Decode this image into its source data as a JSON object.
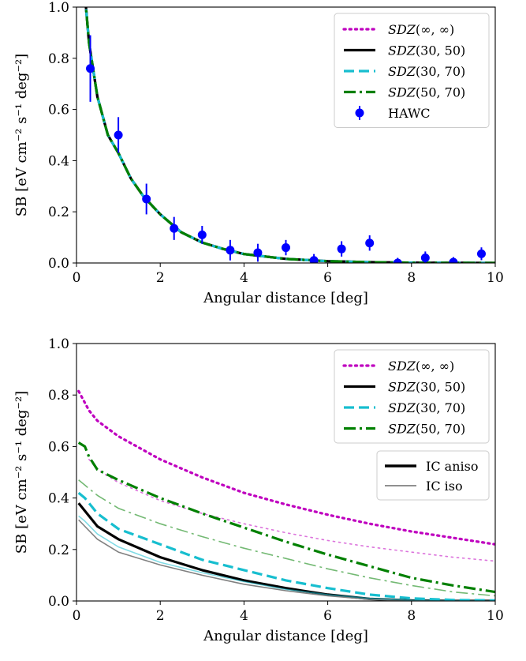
{
  "chart_data": [
    {
      "type": "line",
      "xlabel": "Angular distance [deg]",
      "ylabel": "SB [eV cm⁻² s⁻¹ deg⁻²]",
      "xlim": [
        0,
        10
      ],
      "ylim": [
        0,
        1.0
      ],
      "xticks": [
        "0",
        "2",
        "4",
        "6",
        "8",
        "10"
      ],
      "yticks": [
        "0.0",
        "0.2",
        "0.4",
        "0.6",
        "0.8",
        "1.0"
      ],
      "grid": false,
      "legend_position": "top-right",
      "series": [
        {
          "name": "SDZ(∞, ∞)",
          "color": "#bf00bf",
          "style": "dotted",
          "x": [
            0.2,
            0.3,
            0.5,
            0.75,
            1.0,
            1.3,
            1.6,
            2.0,
            2.5,
            3.0,
            3.5,
            4.0,
            5.0,
            6.0,
            7.0,
            8.0,
            10.0
          ],
          "y": [
            1.05,
            0.86,
            0.65,
            0.5,
            0.43,
            0.33,
            0.26,
            0.19,
            0.12,
            0.08,
            0.055,
            0.035,
            0.016,
            0.007,
            0.003,
            0.001,
            0.0
          ]
        },
        {
          "name": "SDZ(30, 50)",
          "color": "#000000",
          "style": "solid",
          "x": [
            0.2,
            0.3,
            0.5,
            0.75,
            1.0,
            1.3,
            1.6,
            2.0,
            2.5,
            3.0,
            3.5,
            4.0,
            5.0,
            6.0,
            7.0,
            8.0,
            10.0
          ],
          "y": [
            1.05,
            0.86,
            0.65,
            0.5,
            0.43,
            0.33,
            0.26,
            0.19,
            0.12,
            0.08,
            0.055,
            0.035,
            0.016,
            0.007,
            0.003,
            0.001,
            0.0
          ]
        },
        {
          "name": "SDZ(30, 70)",
          "color": "#17becf",
          "style": "dashed",
          "x": [
            0.2,
            0.3,
            0.5,
            0.75,
            1.0,
            1.3,
            1.6,
            2.0,
            2.5,
            3.0,
            3.5,
            4.0,
            5.0,
            6.0,
            7.0,
            8.0,
            10.0
          ],
          "y": [
            1.05,
            0.86,
            0.65,
            0.5,
            0.43,
            0.33,
            0.26,
            0.19,
            0.12,
            0.08,
            0.055,
            0.035,
            0.016,
            0.007,
            0.003,
            0.001,
            0.0
          ]
        },
        {
          "name": "SDZ(50, 70)",
          "color": "#008000",
          "style": "dashdot",
          "x": [
            0.2,
            0.3,
            0.5,
            0.75,
            1.0,
            1.3,
            1.6,
            2.0,
            2.5,
            3.0,
            3.5,
            4.0,
            5.0,
            6.0,
            7.0,
            8.0,
            10.0
          ],
          "y": [
            1.05,
            0.86,
            0.65,
            0.5,
            0.43,
            0.33,
            0.26,
            0.19,
            0.12,
            0.08,
            0.055,
            0.035,
            0.016,
            0.007,
            0.003,
            0.001,
            0.0
          ]
        }
      ],
      "points": {
        "name": "HAWC",
        "color": "#0000ff",
        "x": [
          0.33,
          1.0,
          1.67,
          2.33,
          3.0,
          3.67,
          4.33,
          5.0,
          5.67,
          6.33,
          7.0,
          7.67,
          8.33,
          9.0,
          9.67
        ],
        "y": [
          0.76,
          0.5,
          0.25,
          0.135,
          0.11,
          0.05,
          0.04,
          0.06,
          0.01,
          0.055,
          0.078,
          0.0,
          0.02,
          0.003,
          0.036
        ],
        "yerr": [
          0.13,
          0.07,
          0.06,
          0.045,
          0.035,
          0.04,
          0.035,
          0.03,
          0.025,
          0.03,
          0.03,
          0.02,
          0.025,
          0.02,
          0.025
        ]
      }
    },
    {
      "type": "line",
      "xlabel": "Angular distance [deg]",
      "ylabel": "SB [eV cm⁻² s⁻¹ deg⁻²]",
      "xlim": [
        0,
        10
      ],
      "ylim": [
        0,
        1.0
      ],
      "xticks": [
        "0",
        "2",
        "4",
        "6",
        "8",
        "10"
      ],
      "yticks": [
        "0.0",
        "0.2",
        "0.4",
        "0.6",
        "0.8",
        "1.0"
      ],
      "grid": false,
      "legend_position": "top-right",
      "legend2_position": "right",
      "legend2": [
        {
          "name": "IC aniso",
          "color": "#000000",
          "width": "thick"
        },
        {
          "name": "IC iso",
          "color": "#808080",
          "width": "thin"
        }
      ],
      "series": [
        {
          "name": "SDZ(∞, ∞)",
          "color": "#bf00bf",
          "style": "dotted",
          "variant": "aniso",
          "x": [
            0.05,
            0.3,
            0.5,
            1,
            2,
            3,
            4,
            5,
            6,
            7,
            8,
            9,
            10
          ],
          "y": [
            0.815,
            0.74,
            0.7,
            0.64,
            0.55,
            0.48,
            0.42,
            0.375,
            0.335,
            0.3,
            0.27,
            0.245,
            0.22
          ]
        },
        {
          "name": "SDZ(∞, ∞)",
          "color": "#bf00bf",
          "style": "dotted",
          "variant": "iso",
          "x": [
            0.3,
            0.5,
            1,
            2,
            3,
            4,
            5,
            6,
            7,
            8,
            9,
            10
          ],
          "y": [
            0.55,
            0.51,
            0.46,
            0.39,
            0.34,
            0.3,
            0.265,
            0.235,
            0.21,
            0.19,
            0.17,
            0.155
          ]
        },
        {
          "name": "SDZ(30, 50)",
          "color": "#000000",
          "style": "solid",
          "variant": "aniso",
          "x": [
            0.05,
            0.2,
            0.5,
            1,
            2,
            3,
            4,
            5,
            6,
            7,
            8,
            9,
            10
          ],
          "y": [
            0.38,
            0.35,
            0.29,
            0.24,
            0.17,
            0.12,
            0.08,
            0.05,
            0.025,
            0.008,
            0.002,
            0.0,
            0.0
          ]
        },
        {
          "name": "SDZ(30, 50)",
          "color": "#808080",
          "style": "solid",
          "variant": "iso",
          "x": [
            0.05,
            0.2,
            0.5,
            1,
            2,
            3,
            4,
            5,
            6,
            7,
            8,
            9,
            10
          ],
          "y": [
            0.315,
            0.29,
            0.24,
            0.19,
            0.14,
            0.1,
            0.065,
            0.04,
            0.02,
            0.006,
            0.001,
            0.0,
            0.0
          ]
        },
        {
          "name": "SDZ(30, 70)",
          "color": "#17becf",
          "style": "dashed",
          "variant": "aniso",
          "x": [
            0.05,
            0.2,
            0.5,
            1,
            2,
            3,
            4,
            5,
            6,
            7,
            8,
            9,
            10
          ],
          "y": [
            0.42,
            0.4,
            0.34,
            0.28,
            0.22,
            0.16,
            0.12,
            0.08,
            0.05,
            0.025,
            0.01,
            0.004,
            0.002
          ]
        },
        {
          "name": "SDZ(30, 70)",
          "color": "#17becf",
          "style": "solid",
          "variant": "iso",
          "x": [
            0.05,
            0.2,
            0.5,
            1,
            2,
            3,
            4,
            5,
            6,
            7,
            8,
            9,
            10
          ],
          "y": [
            0.33,
            0.31,
            0.26,
            0.21,
            0.15,
            0.11,
            0.075,
            0.045,
            0.025,
            0.01,
            0.003,
            0.001,
            0.0
          ]
        },
        {
          "name": "SDZ(50, 70)",
          "color": "#008000",
          "style": "dashdot",
          "variant": "aniso",
          "x": [
            0.05,
            0.2,
            0.3,
            0.5,
            1,
            2,
            3,
            4,
            5,
            6,
            7,
            8,
            9,
            10
          ],
          "y": [
            0.615,
            0.6,
            0.56,
            0.51,
            0.47,
            0.4,
            0.34,
            0.285,
            0.23,
            0.18,
            0.135,
            0.09,
            0.06,
            0.035
          ]
        },
        {
          "name": "SDZ(50, 70)",
          "color": "#008000",
          "style": "dashdot",
          "variant": "iso",
          "x": [
            0.05,
            0.2,
            0.5,
            1,
            2,
            3,
            4,
            5,
            6,
            7,
            8,
            9,
            10
          ],
          "y": [
            0.47,
            0.45,
            0.41,
            0.36,
            0.3,
            0.25,
            0.205,
            0.165,
            0.125,
            0.09,
            0.06,
            0.035,
            0.02
          ]
        }
      ]
    }
  ]
}
